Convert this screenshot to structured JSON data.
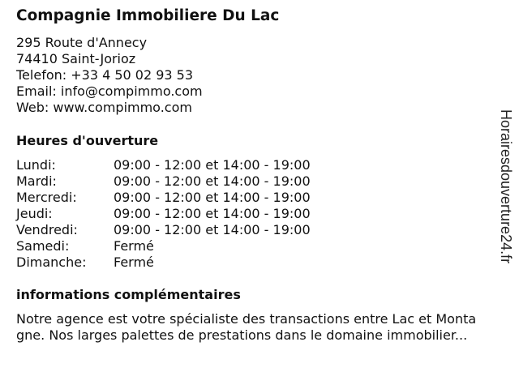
{
  "company": {
    "name": "Compagnie Immobiliere Du Lac",
    "address_line1": "295 Route d'Annecy",
    "address_line2": "74410 Saint-Jorioz",
    "phone": "Telefon: +33 4 50 02 93 53",
    "email": "Email: info@compimmo.com",
    "web": "Web: www.compimmo.com"
  },
  "hours": {
    "heading": "Heures d'ouverture",
    "rows": [
      {
        "day": "Lundi:",
        "time": "09:00 - 12:00 et 14:00 - 19:00"
      },
      {
        "day": "Mardi:",
        "time": "09:00 - 12:00 et 14:00 - 19:00"
      },
      {
        "day": "Mercredi:",
        "time": "09:00 - 12:00 et 14:00 - 19:00"
      },
      {
        "day": "Jeudi:",
        "time": "09:00 - 12:00 et 14:00 - 19:00"
      },
      {
        "day": "Vendredi:",
        "time": "09:00 - 12:00 et 14:00 - 19:00"
      },
      {
        "day": "Samedi:",
        "time": "Fermé"
      },
      {
        "day": "Dimanche:",
        "time": "Fermé"
      }
    ]
  },
  "info": {
    "heading": "informations complémentaires",
    "lines": [
      "Notre agence est votre spécialiste des transactions entre Lac et Monta",
      "gne. Nos larges palettes de prestations dans le domaine immobilier..."
    ]
  },
  "watermark": "Horairesdouverture24.fr"
}
